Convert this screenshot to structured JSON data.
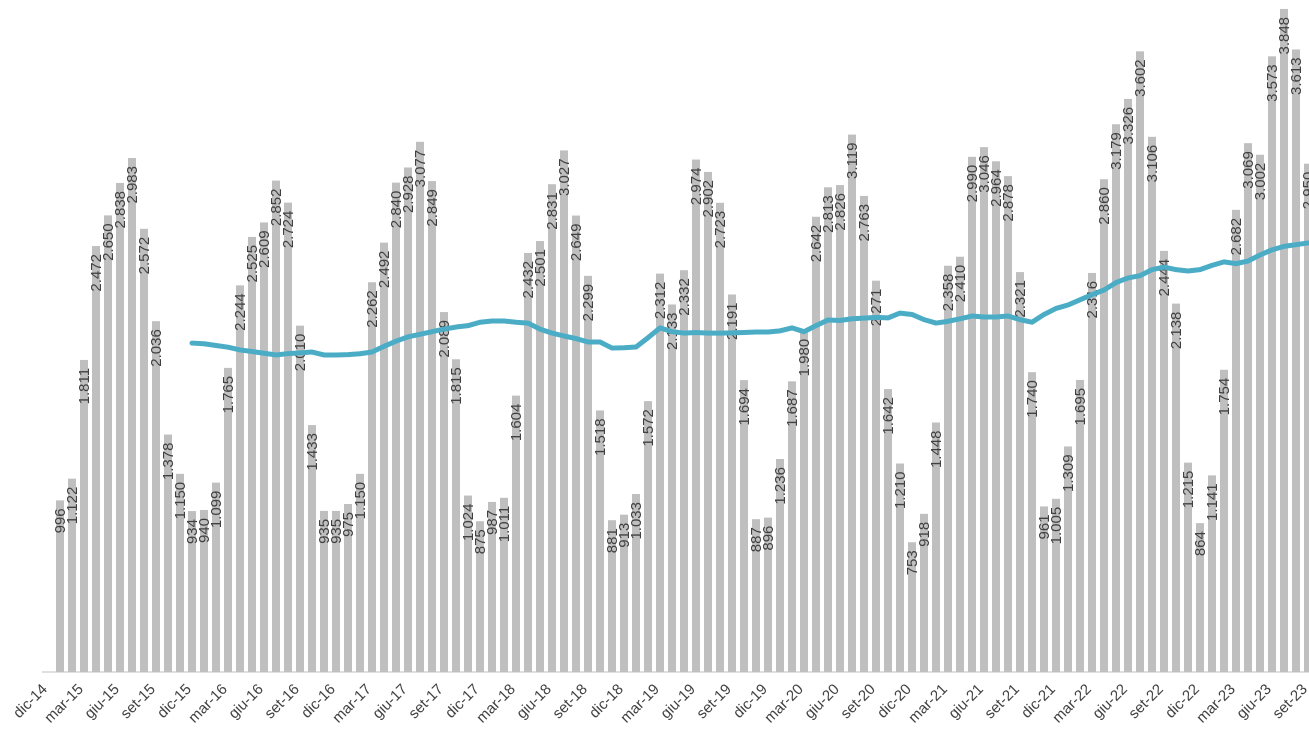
{
  "chart_data": {
    "type": "bar",
    "categories": [
      "dic-14",
      null,
      null,
      "mar-15",
      null,
      null,
      "giu-15",
      null,
      null,
      "set-15",
      null,
      null,
      "dic-15",
      null,
      null,
      "mar-16",
      null,
      null,
      "giu-16",
      null,
      null,
      "set-16",
      null,
      null,
      "dic-16",
      null,
      null,
      "mar-17",
      null,
      null,
      "giu-17",
      null,
      null,
      "set-17",
      null,
      null,
      "dic-17",
      null,
      null,
      "mar-18",
      null,
      null,
      "giu-18",
      null,
      null,
      "set-18",
      null,
      null,
      "dic-18",
      null,
      null,
      "mar-19",
      null,
      null,
      "giu-19",
      null,
      null,
      "set-19",
      null,
      null,
      "dic-19",
      null,
      null,
      "mar-20",
      null,
      null,
      "giu-20",
      null,
      null,
      "set-20",
      null,
      null,
      "dic-20",
      null,
      null,
      "mar-21",
      null,
      null,
      "giu-21",
      null,
      null,
      "set-21",
      null,
      null,
      "dic-21",
      null,
      null,
      "mar-22",
      null,
      null,
      "giu-22",
      null,
      null,
      "set-22",
      null,
      null,
      "dic-22",
      null,
      null,
      "mar-23",
      null,
      null,
      "giu-23",
      null,
      null,
      "set-23"
    ],
    "series": [
      {
        "type": "bar",
        "color": "#bfbfbf",
        "values": [
          null,
          996,
          1122,
          1811,
          2472,
          2650,
          2838,
          2983,
          2572,
          2036,
          1378,
          1150,
          934,
          940,
          1099,
          1765,
          2244,
          2525,
          2609,
          2852,
          2724,
          2010,
          1433,
          935,
          935,
          975,
          1150,
          2262,
          2492,
          2840,
          2928,
          3077,
          2849,
          2089,
          1815,
          1024,
          875,
          987,
          1011,
          1604,
          2432,
          2501,
          2831,
          3027,
          2649,
          2299,
          1518,
          881,
          913,
          1033,
          1572,
          2312,
          2133,
          2332,
          2974,
          2902,
          2723,
          2191,
          1694,
          887,
          896,
          1236,
          1687,
          1980,
          2642,
          2813,
          2826,
          3119,
          2763,
          2271,
          1642,
          1210,
          753,
          918,
          1448,
          2358,
          2410,
          2990,
          3046,
          2964,
          2878,
          2321,
          1740,
          961,
          1005,
          1309,
          1695,
          2316,
          2860,
          3179,
          3326,
          3602,
          3106,
          2444,
          2138,
          1215,
          864,
          1141,
          1754,
          2682,
          3069,
          3002,
          3573,
          3848,
          3613,
          2950
        ],
        "value_labels": [
          null,
          "996",
          "1.122",
          "1.811",
          "2.472",
          "2.650",
          "2.838",
          "2.983",
          "2.572",
          "2.036",
          "1.378",
          "1.150",
          "934",
          "940",
          "1.099",
          "1.765",
          "2.244",
          "2.525",
          "2.609",
          "2.852",
          "2.724",
          "2.010",
          "1.433",
          "935",
          "935",
          "975",
          "1.150",
          "2.262",
          "2.492",
          "2.840",
          "2.928",
          "3.077",
          "2.849",
          "2.089",
          "1.815",
          "1.024",
          "875",
          "987",
          "1.011",
          "1.604",
          "2.432",
          "2.501",
          "2.831",
          "3.027",
          "2.649",
          "2.299",
          "1.518",
          "881",
          "913",
          "1.033",
          "1.572",
          "2.312",
          "2.133",
          "2.332",
          "2.974",
          "2.902",
          "2.723",
          "2.191",
          "1.694",
          "887",
          "896",
          "1.236",
          "1.687",
          "1.980",
          "2.642",
          "2.813",
          "2.826",
          "3.119",
          "2.763",
          "2.271",
          "1.642",
          "1.210",
          "753",
          "918",
          "1.448",
          "2.358",
          "2.410",
          "2.990",
          "3.046",
          "2.964",
          "2.878",
          "2.321",
          "1.740",
          "961",
          "1.005",
          "1.309",
          "1.695",
          "2.316",
          "2.860",
          "3.179",
          "3.326",
          "3.602",
          "3.106",
          "2.444",
          "2.138",
          "1.215",
          "864",
          "1.141",
          "1.754",
          "2.682",
          "3.069",
          "3.002",
          "3.573",
          "3.848",
          "3.613",
          "2.950"
        ]
      },
      {
        "type": "line",
        "color": "#4bacc6",
        "values": [
          null,
          null,
          null,
          null,
          null,
          null,
          null,
          null,
          null,
          null,
          null,
          null,
          1909,
          1905,
          1895,
          1885,
          1869,
          1860,
          1850,
          1840,
          1848,
          1852,
          1857,
          1840,
          1840,
          1842,
          1847,
          1857,
          1890,
          1920,
          1945,
          1960,
          1975,
          1990,
          2002,
          2010,
          2030,
          2037,
          2037,
          2030,
          2025,
          1990,
          1967,
          1950,
          1935,
          1915,
          1915,
          1880,
          1882,
          1886,
          1940,
          1997,
          1975,
          1967,
          1970,
          1967,
          1967,
          1968,
          1970,
          1973,
          1973,
          1980,
          1997,
          1975,
          2010,
          2043,
          2040,
          2050,
          2054,
          2058,
          2055,
          2083,
          2075,
          2045,
          2025,
          2035,
          2050,
          2066,
          2060,
          2060,
          2066,
          2045,
          2030,
          2075,
          2110,
          2130,
          2160,
          2190,
          2217,
          2260,
          2287,
          2300,
          2335,
          2350,
          2335,
          2327,
          2335,
          2360,
          2380,
          2370,
          2385,
          2420,
          2450,
          2470,
          2480,
          2490
        ]
      }
    ],
    "ylim": [
      0,
      3900
    ]
  }
}
